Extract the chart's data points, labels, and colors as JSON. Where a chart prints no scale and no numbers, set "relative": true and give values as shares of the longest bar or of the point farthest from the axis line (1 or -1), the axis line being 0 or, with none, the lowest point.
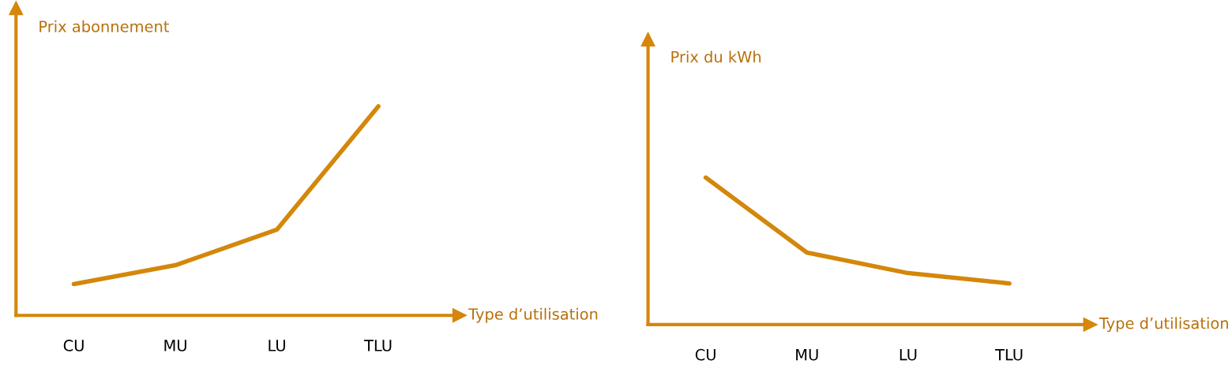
{
  "chart_data": [
    {
      "type": "line",
      "relative": true,
      "ylabel": "Prix abonnement",
      "xlabel": "Type d’utilisation",
      "categories": [
        "CU",
        "MU",
        "LU",
        "TLU"
      ],
      "series": [
        {
          "color": "#d4870a",
          "values": [
            0.15,
            0.24,
            0.41,
            1
          ]
        }
      ]
    },
    {
      "type": "line",
      "relative": true,
      "ylabel": "Prix du kWh",
      "xlabel": "Type d’utilisation",
      "categories": [
        "CU",
        "MU",
        "LU",
        "TLU"
      ],
      "series": [
        {
          "color": "#d4870a",
          "values": [
            1,
            0.49,
            0.35,
            0.28
          ]
        }
      ]
    }
  ]
}
